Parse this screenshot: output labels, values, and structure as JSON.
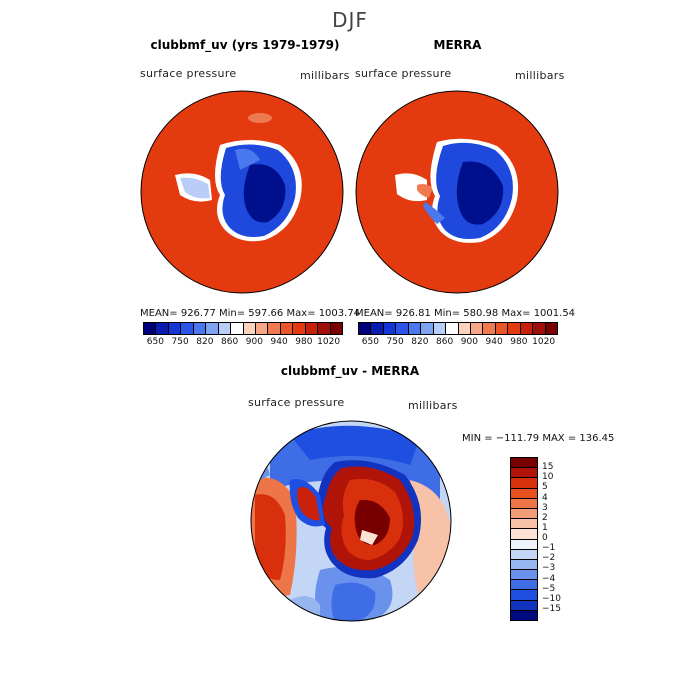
{
  "title": "DJF",
  "panels": [
    {
      "title": "clubbmf_uv (yrs 1979-1979)",
      "left_label": "surface pressure",
      "right_label": "millibars",
      "stats": "MEAN= 926.77   Min= 597.66   Max= 1003.74"
    },
    {
      "title": "MERRA",
      "left_label": "surface pressure",
      "right_label": "millibars",
      "stats": "MEAN= 926.81   Min= 580.98   Max= 1001.54"
    },
    {
      "title": "clubbmf_uv - MERRA",
      "left_label": "surface pressure",
      "right_label": "millibars",
      "stats": "MIN = −111.79 MAX = 136.45"
    }
  ],
  "colorbar_top": {
    "colors": [
      "#00007a",
      "#0a1bb0",
      "#1536d6",
      "#2a55e8",
      "#4a78ef",
      "#7fa3f3",
      "#b8cdf8",
      "#ffffff",
      "#fbd3bd",
      "#f6a785",
      "#f07a50",
      "#ea552a",
      "#e43a0f",
      "#c8200a",
      "#a0100a",
      "#780000"
    ],
    "tick_labels": [
      "650",
      "750",
      "820",
      "860",
      "900",
      "940",
      "980",
      "1020"
    ]
  },
  "colorbar_diff": {
    "colors": [
      "#780000",
      "#b01408",
      "#d8300d",
      "#e85020",
      "#ee7548",
      "#f29c78",
      "#f7c2a8",
      "#fbe2d4",
      "#eef2fb",
      "#c4d6f6",
      "#97b5f0",
      "#6a92ec",
      "#3e6de6",
      "#1f4fe0",
      "#1232c0",
      "#000a80"
    ],
    "tick_labels": [
      "15",
      "10",
      "5",
      "4",
      "3",
      "2",
      "1",
      "0",
      "−1",
      "−2",
      "−3",
      "−4",
      "−5",
      "−10",
      "−15"
    ]
  },
  "map_colors": {
    "ocean_high": "#e43a0f",
    "ocean_shade": "#c8300c",
    "ice_low": "#00108c",
    "ice_mid": "#1e49dc",
    "ice_edge": "#6a92ec",
    "diff_pos": "#c8200a",
    "diff_neg": "#2a55e8",
    "diff_light_neg": "#c4d6f6",
    "diff_light_pos": "#f6a785"
  }
}
